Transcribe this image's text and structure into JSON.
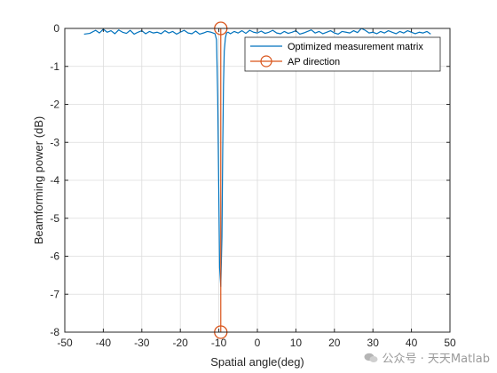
{
  "chart_data": {
    "type": "line",
    "title": "",
    "xlabel": "Spatial angle(deg)",
    "ylabel": "Beamforming power (dB)",
    "xlim": [
      -50,
      50
    ],
    "ylim": [
      -8,
      0
    ],
    "xticks": [
      -50,
      -40,
      -30,
      -20,
      -10,
      0,
      10,
      20,
      30,
      40,
      50
    ],
    "yticks": [
      0,
      -1,
      -2,
      -3,
      -4,
      -5,
      -6,
      -7,
      -8
    ],
    "grid": true,
    "legend_position": "top-right",
    "series": [
      {
        "name": "Optimized measurement matrix",
        "color": "#0072BD",
        "x": [
          -45,
          -43.5,
          -42,
          -41,
          -40,
          -39,
          -38,
          -37,
          -36,
          -35,
          -34,
          -33,
          -32,
          -31,
          -30,
          -29,
          -28,
          -27,
          -26,
          -25,
          -24,
          -23,
          -22,
          -21,
          -20,
          -19,
          -18,
          -17,
          -16,
          -15,
          -14,
          -13,
          -12,
          -11,
          -10.6,
          -10.3,
          -10,
          -9.8,
          -9.5,
          -9.2,
          -9,
          -8.8,
          -8.6,
          -8.3,
          -8,
          -7.6,
          -7,
          -6,
          -5,
          -4,
          -3,
          -2,
          -1,
          0,
          1,
          2,
          3,
          4,
          5,
          6,
          7,
          8,
          9,
          10,
          11,
          12,
          13,
          14,
          15,
          16,
          17,
          18,
          19,
          20,
          21,
          22,
          23,
          24,
          25,
          26,
          27,
          28,
          29,
          30,
          31,
          32,
          33,
          34,
          35,
          36,
          37,
          38,
          39,
          40,
          41,
          42,
          43,
          44,
          45
        ],
        "y": [
          -0.15,
          -0.13,
          -0.05,
          -0.12,
          -0.02,
          -0.1,
          -0.06,
          -0.14,
          -0.04,
          -0.1,
          -0.13,
          -0.05,
          -0.15,
          -0.1,
          -0.06,
          -0.14,
          -0.08,
          -0.12,
          -0.1,
          -0.14,
          -0.06,
          -0.12,
          -0.08,
          -0.15,
          -0.1,
          -0.05,
          -0.12,
          -0.14,
          -0.07,
          -0.15,
          -0.12,
          -0.08,
          -0.1,
          -0.14,
          -0.3,
          -1.8,
          -4.5,
          -6.3,
          -6.8,
          -5.5,
          -3.2,
          -1.5,
          -0.6,
          -0.25,
          -0.12,
          -0.1,
          -0.14,
          -0.08,
          -0.12,
          -0.06,
          -0.13,
          -0.05,
          -0.1,
          -0.12,
          -0.07,
          -0.13,
          -0.1,
          -0.05,
          -0.12,
          -0.14,
          -0.08,
          -0.13,
          -0.1,
          -0.06,
          -0.15,
          -0.12,
          -0.08,
          -0.04,
          -0.12,
          -0.08,
          -0.14,
          -0.1,
          -0.06,
          -0.12,
          -0.15,
          -0.08,
          -0.1,
          -0.12,
          -0.06,
          -0.11,
          0.0,
          -0.05,
          -0.12,
          -0.1,
          -0.14,
          -0.08,
          -0.12,
          -0.06,
          -0.1,
          -0.14,
          -0.08,
          -0.12,
          -0.06,
          -0.1,
          -0.14,
          -0.1,
          -0.12,
          -0.08,
          -0.15
        ]
      },
      {
        "name": "AP direction",
        "color": "#D95319",
        "marker": "circle",
        "x": [
          -9.5,
          -9.5
        ],
        "y": [
          0,
          -8
        ]
      }
    ]
  },
  "watermark": {
    "text": "公众号 · 天天Matlab"
  }
}
